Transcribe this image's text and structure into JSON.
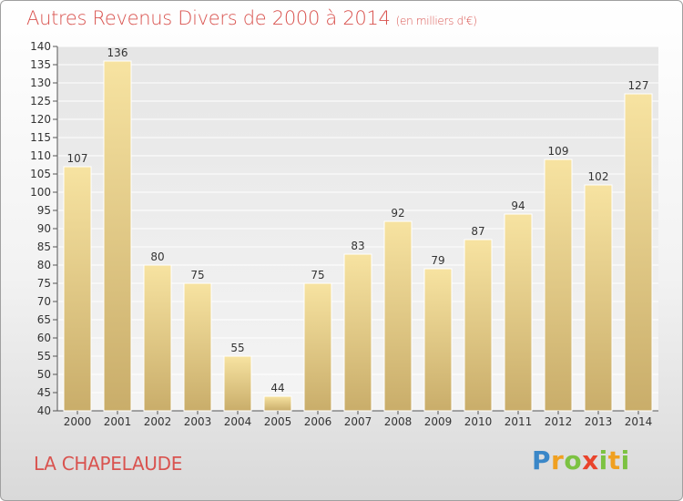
{
  "header": {
    "title": "Autres Revenus Divers de 2000 à 2014",
    "unit": "(en milliers d'€)"
  },
  "footer": {
    "commune": "LA CHAPELAUDE",
    "logo": {
      "p": "P",
      "r": "r",
      "o": "o",
      "x": "x",
      "i": "i",
      "t": "t",
      "i2": "i"
    }
  },
  "colors": {
    "title": "#d9534f",
    "bar_light": "#f7e3a1",
    "bar_dark": "#c9ad6a",
    "grid": "#ffffff"
  },
  "chart_data": {
    "type": "bar",
    "title": "Autres Revenus Divers de 2000 à 2014",
    "categories": [
      "2000",
      "2001",
      "2002",
      "2003",
      "2004",
      "2005",
      "2006",
      "2007",
      "2008",
      "2009",
      "2010",
      "2011",
      "2012",
      "2013",
      "2014"
    ],
    "values": [
      107,
      136,
      80,
      75,
      55,
      44,
      75,
      83,
      92,
      79,
      87,
      94,
      109,
      102,
      127
    ],
    "ylim": [
      40,
      140
    ],
    "yticks": [
      40,
      45,
      50,
      55,
      60,
      65,
      70,
      75,
      80,
      85,
      90,
      95,
      100,
      105,
      110,
      115,
      120,
      125,
      130,
      135,
      140
    ],
    "grid": true,
    "data_labels": true
  }
}
